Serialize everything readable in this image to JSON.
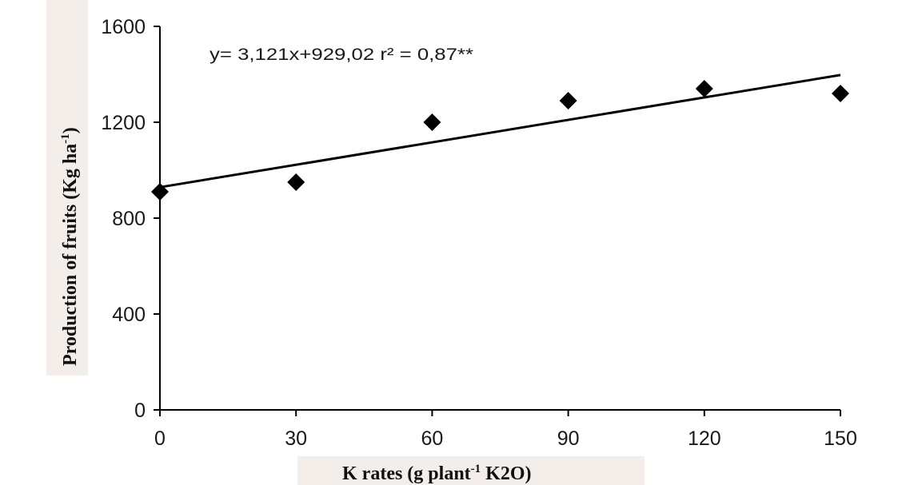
{
  "chart_data": {
    "type": "scatter",
    "title": "",
    "xlabel": "K rates (g plant-1 K2O)",
    "xlabel_parts": {
      "main": "K rates (g plant",
      "sup": "-1",
      "tail": " K2O)"
    },
    "ylabel": "Production of fruits (Kg ha-1)",
    "ylabel_parts": {
      "main": "Production of fruits (Kg ha",
      "sup": "-1",
      "tail": ")"
    },
    "xlim": [
      0,
      150
    ],
    "ylim": [
      0,
      1600
    ],
    "x_ticks": [
      0,
      30,
      60,
      90,
      120,
      150
    ],
    "y_ticks": [
      0,
      400,
      800,
      1200,
      1600
    ],
    "series": [
      {
        "marker": "diamond",
        "color": "#000000",
        "x": [
          0,
          30,
          60,
          90,
          120,
          150
        ],
        "y": [
          910,
          950,
          1200,
          1290,
          1340,
          1320
        ]
      }
    ],
    "trendline": {
      "slope": 3.121,
      "intercept": 929.02,
      "x_range": [
        0,
        150
      ],
      "color": "#000000"
    },
    "annotation": "y= 3,121x+929,02 r² = 0,87**",
    "grid": false,
    "legend": "none"
  }
}
